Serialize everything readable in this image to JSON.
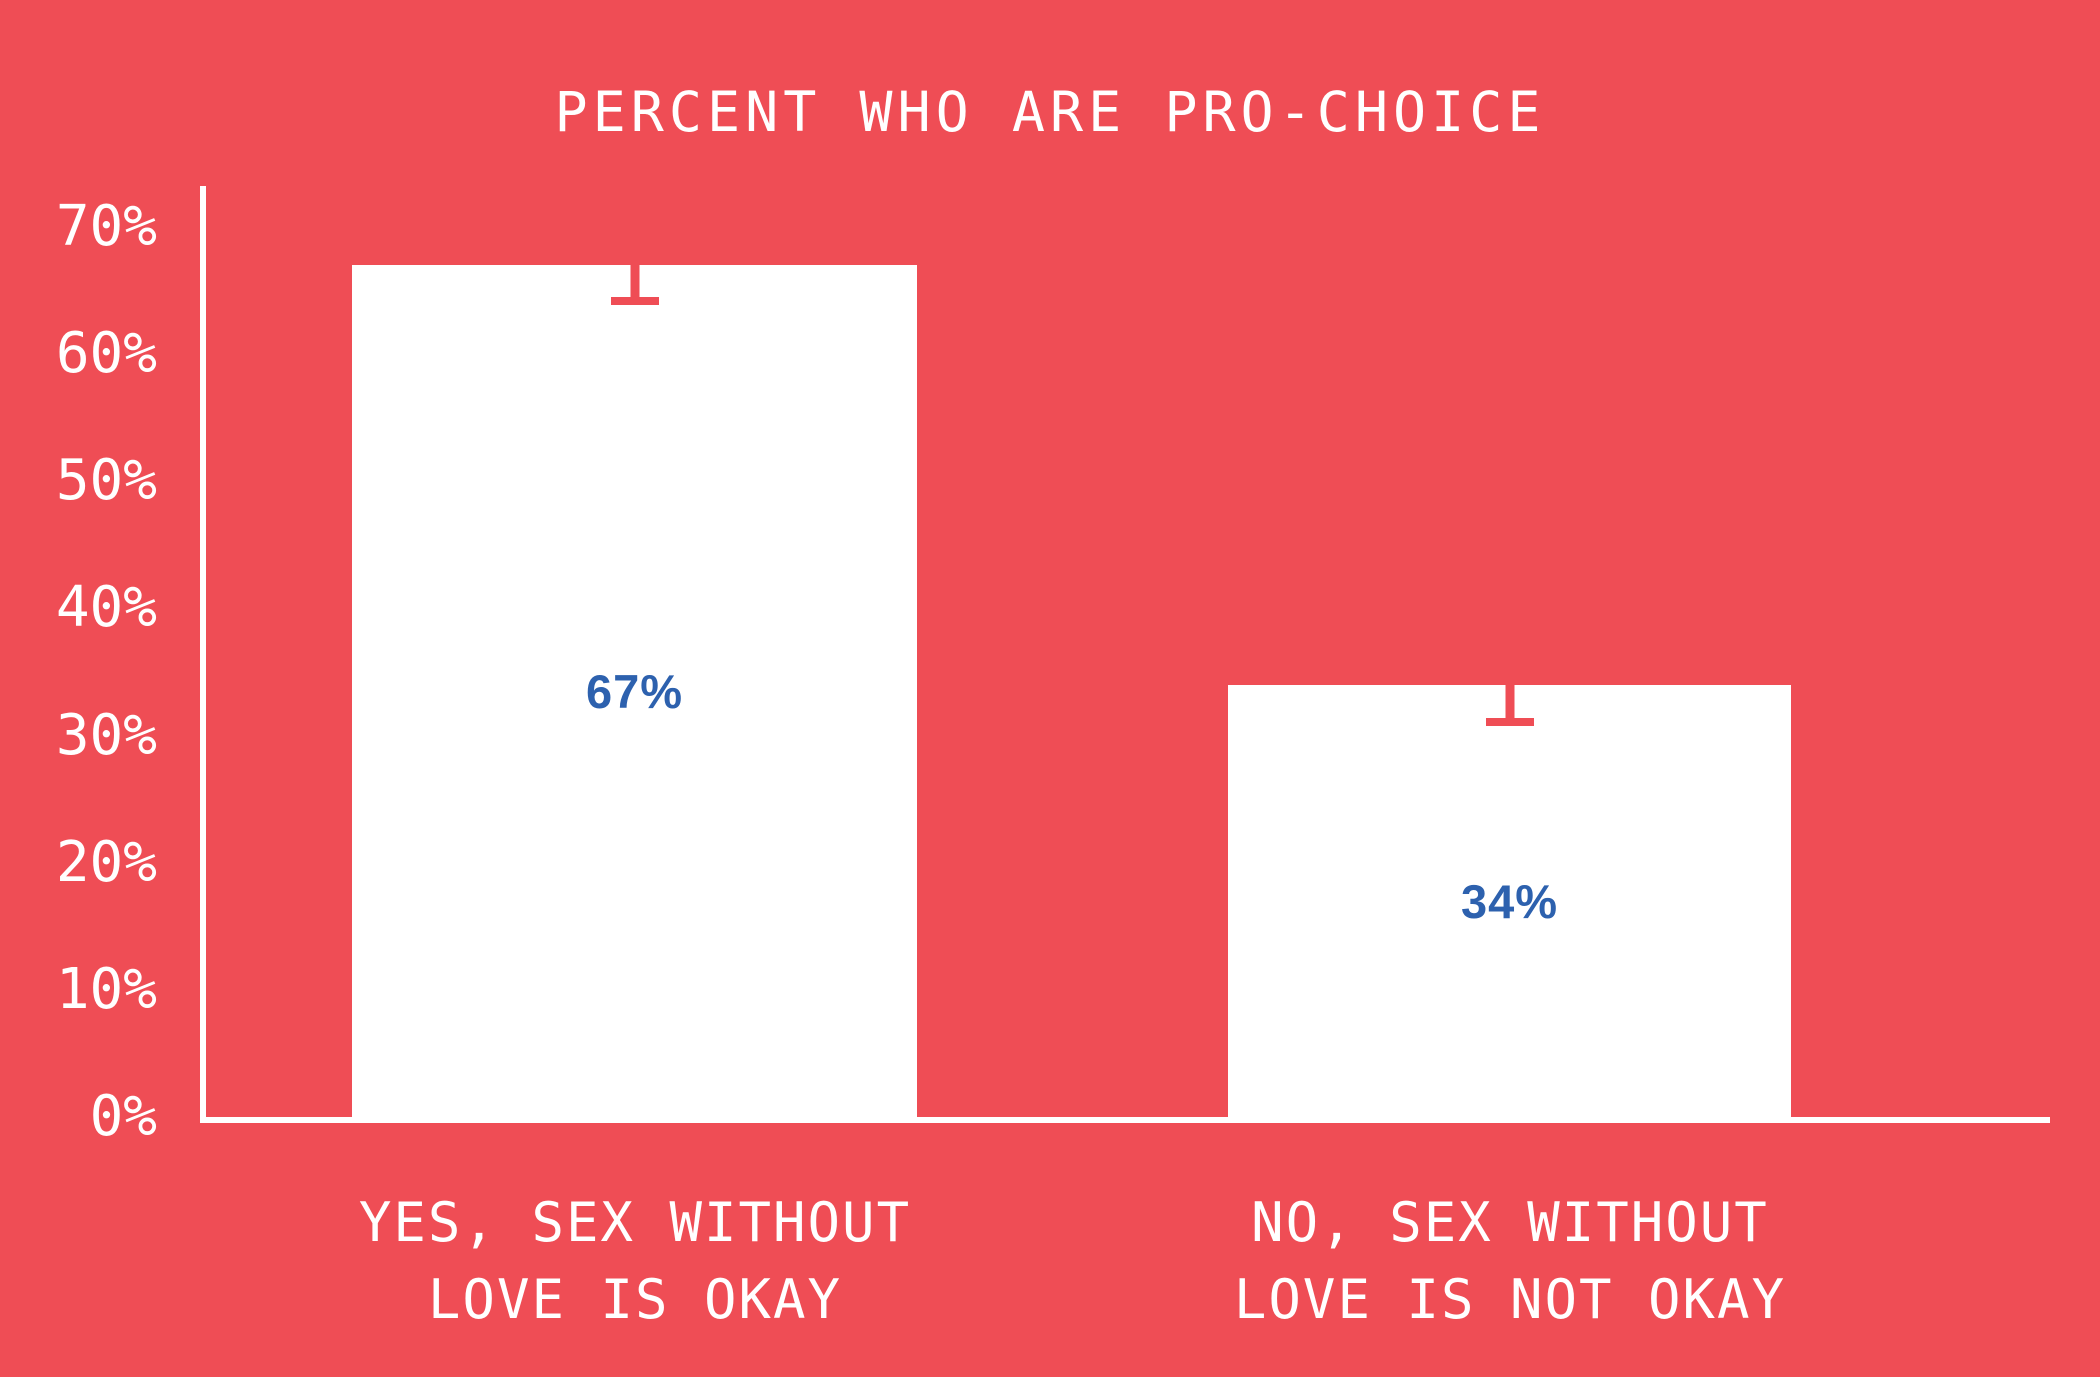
{
  "title": "PERCENT WHO ARE PRO-CHOICE",
  "colors": {
    "background": "#EF4D55",
    "bar_fill": "#FFFFFF",
    "axis": "#FFFFFF",
    "tick_text": "#FFFFFF",
    "category_text": "#FFFFFF",
    "value_text": "#2D61AE",
    "error_bar": "#EF4D55"
  },
  "y_axis": {
    "ticks": [
      {
        "label": "70%",
        "pct": 70
      },
      {
        "label": "60%",
        "pct": 60
      },
      {
        "label": "50%",
        "pct": 50
      },
      {
        "label": "40%",
        "pct": 40
      },
      {
        "label": "30%",
        "pct": 30
      },
      {
        "label": "20%",
        "pct": 20
      },
      {
        "label": "10%",
        "pct": 10
      },
      {
        "label": "0%",
        "pct": 0
      }
    ]
  },
  "bars": [
    {
      "value": 67,
      "value_label": "67%",
      "error_margin": 2.5,
      "label_lines": [
        "YES, SEX WITHOUT",
        "LOVE IS OKAY"
      ]
    },
    {
      "value": 34,
      "value_label": "34%",
      "error_margin": 2.6,
      "label_lines": [
        "NO, SEX WITHOUT",
        "LOVE IS NOT OKAY"
      ]
    }
  ],
  "chart_data": {
    "type": "bar",
    "title": "PERCENT WHO ARE PRO-CHOICE",
    "categories": [
      "YES, SEX WITHOUT LOVE IS OKAY",
      "NO, SEX WITHOUT LOVE IS NOT OKAY"
    ],
    "values": [
      67,
      34
    ],
    "data_labels": [
      "67%",
      "34%"
    ],
    "error_lower": [
      2.5,
      2.6
    ],
    "xlabel": "",
    "ylabel": "",
    "ylim": [
      0,
      70
    ],
    "ytick_labels": [
      "0%",
      "10%",
      "20%",
      "30%",
      "40%",
      "50%",
      "60%",
      "70%"
    ],
    "grid": false,
    "legend": false,
    "bar_color": "#FFFFFF",
    "background_color": "#EF4D55",
    "label_color": "#2D61AE"
  }
}
